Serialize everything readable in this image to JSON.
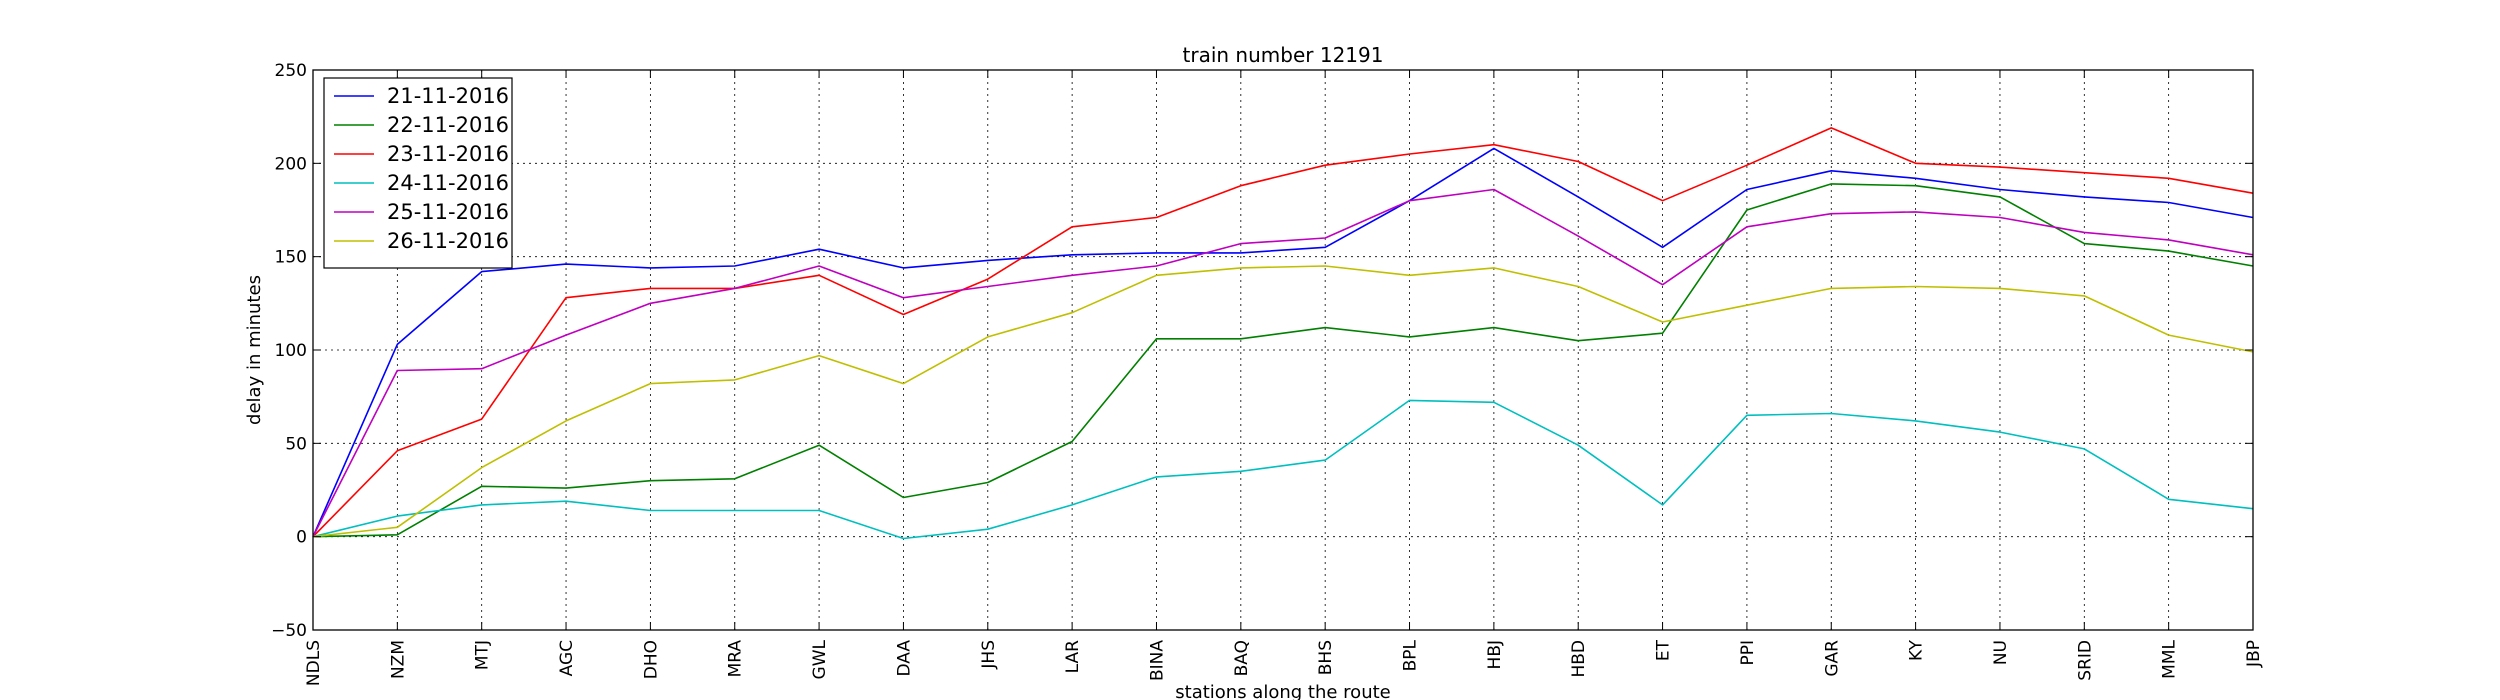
{
  "chart_data": {
    "type": "line",
    "title": "train number 12191",
    "xlabel": "stations along the route",
    "ylabel": "delay in minutes",
    "ylim": [
      -50,
      250
    ],
    "yticks": [
      -50,
      0,
      50,
      100,
      150,
      200,
      250
    ],
    "grid": true,
    "legend_position": "top-left",
    "categories": [
      "NDLS",
      "NZM",
      "MTJ",
      "AGC",
      "DHO",
      "MRA",
      "GWL",
      "DAA",
      "JHS",
      "LAR",
      "BINA",
      "BAQ",
      "BHS",
      "BPL",
      "HBJ",
      "HBD",
      "ET",
      "PPI",
      "GAR",
      "KY",
      "NU",
      "SRID",
      "MML",
      "JBP"
    ],
    "series": [
      {
        "name": "21-11-2016",
        "color": "#0000ff",
        "values": [
          0,
          103,
          142,
          146,
          144,
          145,
          154,
          144,
          148,
          151,
          152,
          152,
          155,
          180,
          208,
          182,
          155,
          186,
          196,
          192,
          186,
          182,
          179,
          171
        ]
      },
      {
        "name": "22-11-2016",
        "color": "#008000",
        "values": [
          0,
          1,
          27,
          26,
          30,
          31,
          49,
          21,
          29,
          51,
          106,
          106,
          112,
          107,
          112,
          105,
          109,
          175,
          189,
          188,
          182,
          157,
          153,
          145
        ]
      },
      {
        "name": "23-11-2016",
        "color": "#ff0000",
        "values": [
          0,
          46,
          63,
          128,
          133,
          133,
          140,
          119,
          138,
          166,
          171,
          188,
          199,
          205,
          210,
          201,
          180,
          199,
          219,
          200,
          198,
          195,
          192,
          184
        ]
      },
      {
        "name": "24-11-2016",
        "color": "#00bfbf",
        "values": [
          0,
          11,
          17,
          19,
          14,
          14,
          14,
          -1,
          4,
          17,
          32,
          35,
          41,
          73,
          72,
          49,
          17,
          65,
          66,
          62,
          56,
          47,
          20,
          15
        ]
      },
      {
        "name": "25-11-2016",
        "color": "#bf00bf",
        "values": [
          0,
          89,
          90,
          108,
          125,
          133,
          145,
          128,
          134,
          140,
          145,
          157,
          160,
          180,
          186,
          161,
          135,
          166,
          173,
          174,
          171,
          163,
          159,
          151
        ]
      },
      {
        "name": "26-11-2016",
        "color": "#bfbf00",
        "values": [
          0,
          5,
          37,
          62,
          82,
          84,
          97,
          82,
          107,
          120,
          140,
          144,
          145,
          140,
          144,
          134,
          115,
          124,
          133,
          134,
          133,
          129,
          108,
          99
        ]
      }
    ]
  }
}
